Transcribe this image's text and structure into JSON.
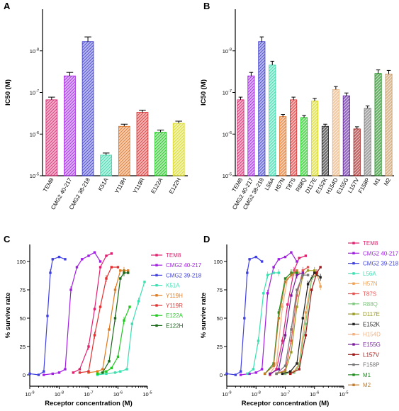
{
  "chart_data": [
    {
      "panel": "A",
      "type": "bar",
      "ylabel": "IC50 (M)",
      "scale": "log",
      "y_range": [
        1e-05,
        1e-09
      ],
      "y_reversed": true,
      "y_ticks": [
        "10-8",
        "10-7",
        "10-6",
        "10-5"
      ],
      "categories": [
        "TEM8",
        "CMG2 40-217",
        "CMG2 38-218",
        "K51A",
        "Y119H",
        "Y119R",
        "E122A",
        "E122H"
      ],
      "values": [
        1.5e-07,
        4e-08,
        6e-09,
        3.2e-06,
        6.5e-07,
        3e-07,
        9e-07,
        5.5e-07
      ],
      "colors": [
        "#d6206a",
        "#a01fe0",
        "#3a3acd",
        "#2fd6a8",
        "#e0701e",
        "#d92e2e",
        "#17c217",
        "#d8d81a"
      ]
    },
    {
      "panel": "B",
      "type": "bar",
      "ylabel": "IC50 (M)",
      "scale": "log",
      "y_range": [
        1e-05,
        1e-09
      ],
      "y_reversed": true,
      "y_ticks": [
        "10-8",
        "10-7",
        "10-6",
        "10-5"
      ],
      "categories": [
        "TEM8",
        "CMG2 40-217",
        "CMG2 38-218",
        "L56A",
        "H57N",
        "T87S",
        "R88Q",
        "D117E",
        "E152K",
        "H154D",
        "E155G",
        "L157V",
        "F158P",
        "M1",
        "M2"
      ],
      "values": [
        1.5e-07,
        4e-08,
        6e-09,
        2.2e-08,
        3.8e-07,
        1.5e-07,
        4e-07,
        1.6e-07,
        6.5e-07,
        8.5e-08,
        1.2e-07,
        7.5e-07,
        2.4e-07,
        3.5e-08,
        3.6e-08
      ],
      "colors": [
        "#d6206a",
        "#a01fe0",
        "#3a3acd",
        "#2fd6a8",
        "#e0701e",
        "#d92e2e",
        "#17c217",
        "#d8d81a",
        "#222222",
        "#e8b07a",
        "#5a1a9a",
        "#a01818",
        "#777777",
        "#1c8c1c",
        "#c89860"
      ]
    },
    {
      "panel": "C",
      "type": "line",
      "xlabel": "Receptor concentration (M)",
      "ylabel": "% survive rate",
      "x_scale": "log",
      "xlim": [
        1e-09,
        1e-05
      ],
      "ylim": [
        -10,
        115
      ],
      "x_ticks": [
        "10-9",
        "10-8",
        "10-7",
        "10-6",
        "10-5"
      ],
      "y_ticks": [
        "0",
        "25",
        "50",
        "75",
        "100"
      ],
      "series": [
        {
          "name": "TEM8",
          "color": "#e0206f",
          "x": [
            3e-08,
            5e-08,
            1e-07,
            1.6e-07,
            2.5e-07,
            4e-07,
            6e-07
          ],
          "y": [
            2,
            5,
            25,
            58,
            95,
            105,
            107
          ]
        },
        {
          "name": "CMG2 40-217",
          "color": "#a01fe0",
          "x": [
            3e-09,
            6e-09,
            1e-08,
            1.6e-08,
            2.5e-08,
            4e-08,
            6e-08,
            1e-07,
            1.6e-07,
            2.5e-07
          ],
          "y": [
            0,
            1,
            2,
            5,
            75,
            95,
            102,
            105,
            108,
            100
          ]
        },
        {
          "name": "CMG2 39-218",
          "color": "#4040e0",
          "x": [
            1e-09,
            2e-09,
            3e-09,
            4e-09,
            5e-09,
            6e-09,
            1e-08,
            1.6e-08
          ],
          "y": [
            1,
            0,
            3,
            52,
            90,
            102,
            104,
            102
          ]
        },
        {
          "name": "K51A",
          "color": "#3ae0b0",
          "x": [
            2e-07,
            4e-07,
            8e-07,
            1.2e-06,
            2e-06,
            3e-06,
            5e-06,
            8e-06
          ],
          "y": [
            0,
            1,
            2,
            3,
            5,
            45,
            65,
            82
          ]
        },
        {
          "name": "Y119H",
          "color": "#e07a1e",
          "x": [
            1e-07,
            2e-07,
            3e-07,
            5e-07,
            8e-07,
            1.2e-06,
            1.6e-06,
            2.2e-06
          ],
          "y": [
            2,
            3,
            5,
            40,
            75,
            92,
            92,
            92
          ]
        },
        {
          "name": "Y119R",
          "color": "#e03030",
          "x": [
            5e-08,
            1e-07,
            1.6e-07,
            2.5e-07,
            4e-07,
            6e-07,
            1e-06
          ],
          "y": [
            2,
            3,
            35,
            60,
            85,
            95,
            95
          ]
        },
        {
          "name": "E122A",
          "color": "#20c820",
          "x": [
            2e-07,
            4e-07,
            6e-07,
            1e-06,
            1.6e-06,
            2.5e-06
          ],
          "y": [
            1,
            3,
            6,
            16,
            48,
            60
          ]
        },
        {
          "name": "E122H",
          "color": "#1a6a1a",
          "x": [
            3e-07,
            5e-07,
            8e-07,
            1.2e-06,
            1.6e-06,
            2.2e-06
          ],
          "y": [
            2,
            12,
            50,
            85,
            90,
            90
          ]
        }
      ]
    },
    {
      "panel": "D",
      "type": "line",
      "xlabel": "Receptor concentration (M)",
      "ylabel": "% survive rate",
      "x_scale": "log",
      "xlim": [
        1e-09,
        1e-05
      ],
      "ylim": [
        -10,
        115
      ],
      "x_ticks": [
        "10-9",
        "10-8",
        "10-7",
        "10-6",
        "10-5"
      ],
      "y_ticks": [
        "0",
        "25",
        "50",
        "75",
        "100"
      ],
      "series": [
        {
          "name": "TEM8",
          "color": "#e0206f",
          "x": [
            3e-08,
            5e-08,
            8e-08,
            1.2e-07,
            2e-07,
            3e-07,
            5e-07
          ],
          "y": [
            0,
            5,
            30,
            62,
            92,
            103,
            105
          ]
        },
        {
          "name": "CMG2 40-217",
          "color": "#a01fe0",
          "x": [
            3e-09,
            6e-09,
            1e-08,
            1.6e-08,
            2.5e-08,
            4e-08,
            6e-08,
            1e-07,
            1.6e-07,
            2.5e-07
          ],
          "y": [
            0,
            1,
            2,
            5,
            72,
            95,
            102,
            104,
            108,
            100
          ]
        },
        {
          "name": "CMG2 39-218",
          "color": "#4040e0",
          "x": [
            1e-09,
            2e-09,
            3e-09,
            4e-09,
            5e-09,
            6e-09,
            1e-08,
            1.6e-08
          ],
          "y": [
            1,
            0,
            3,
            50,
            90,
            102,
            104,
            100
          ]
        },
        {
          "name": "L56A",
          "color": "#3ae0b0",
          "x": [
            5e-09,
            8e-09,
            1.2e-08,
            1.8e-08,
            2.5e-08,
            4e-08,
            6e-08
          ],
          "y": [
            1,
            5,
            30,
            72,
            88,
            90,
            90
          ]
        },
        {
          "name": "H57N",
          "color": "#f0a050",
          "x": [
            1e-07,
            2e-07,
            3e-07,
            5e-07,
            8e-07,
            1.2e-06,
            1.6e-06
          ],
          "y": [
            1,
            3,
            10,
            55,
            85,
            90,
            78
          ]
        },
        {
          "name": "T87S",
          "color": "#e85050",
          "x": [
            5e-08,
            1e-07,
            1.6e-07,
            2.5e-07,
            4e-07,
            6e-07
          ],
          "y": [
            1,
            4,
            30,
            70,
            92,
            95
          ]
        },
        {
          "name": "R88Q",
          "color": "#7ac87a",
          "x": [
            1e-07,
            2e-07,
            3e-07,
            5e-07,
            8e-07,
            1.2e-06
          ],
          "y": [
            1,
            2,
            8,
            45,
            85,
            88
          ]
        },
        {
          "name": "D117E",
          "color": "#9a9a20",
          "x": [
            5e-08,
            1e-07,
            1.6e-07,
            2.5e-07,
            4e-07,
            6e-07,
            1e-06
          ],
          "y": [
            1,
            3,
            20,
            60,
            88,
            92,
            92
          ]
        },
        {
          "name": "E152K",
          "color": "#222222",
          "x": [
            8e-08,
            1.5e-07,
            2.5e-07,
            4e-07,
            6e-07,
            1e-06,
            1.6e-06
          ],
          "y": [
            1,
            3,
            10,
            50,
            80,
            90,
            86
          ]
        },
        {
          "name": "H154D",
          "color": "#f2b080",
          "x": [
            3e-08,
            5e-08,
            8e-08,
            1.2e-07,
            2e-07,
            3e-07
          ],
          "y": [
            1,
            10,
            60,
            85,
            90,
            90
          ]
        },
        {
          "name": "E155G",
          "color": "#7a1aa0",
          "x": [
            3e-08,
            6e-08,
            1e-07,
            1.6e-07,
            2.5e-07,
            4e-07
          ],
          "y": [
            1,
            5,
            35,
            70,
            88,
            90
          ]
        },
        {
          "name": "L157V",
          "color": "#a01818",
          "x": [
            1.5e-07,
            3e-07,
            5e-07,
            8e-07,
            1.2e-06,
            1.6e-06
          ],
          "y": [
            1,
            5,
            35,
            75,
            90,
            95
          ]
        },
        {
          "name": "F158P",
          "color": "#777777",
          "x": [
            5e-08,
            1e-07,
            1.6e-07,
            2.5e-07,
            4e-07,
            6e-07
          ],
          "y": [
            1,
            8,
            40,
            75,
            88,
            88
          ]
        },
        {
          "name": "M1",
          "color": "#1c8c1c",
          "x": [
            2e-08,
            4e-08,
            6e-08,
            1e-07,
            1.6e-07,
            2.5e-07
          ],
          "y": [
            1,
            10,
            55,
            85,
            90,
            90
          ]
        },
        {
          "name": "M2",
          "color": "#c07a2a",
          "x": [
            2e-08,
            4e-08,
            6e-08,
            1e-07,
            1.6e-07,
            2.5e-07
          ],
          "y": [
            1,
            8,
            50,
            82,
            88,
            92
          ]
        }
      ]
    }
  ]
}
